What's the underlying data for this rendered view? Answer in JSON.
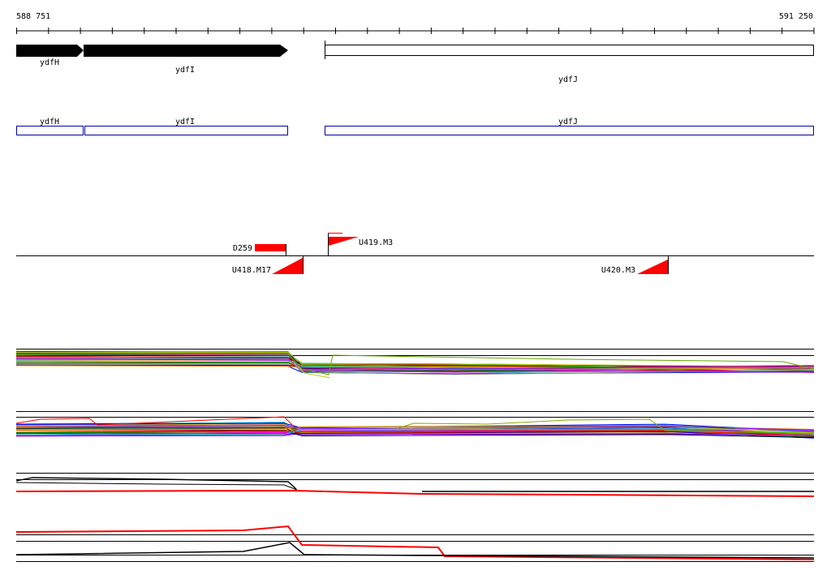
{
  "ruler": {
    "start_label": "588 751",
    "end_label": "591 250"
  },
  "genes": [
    {
      "id": "ydfH",
      "label": "ydfH",
      "strand": "+",
      "style": "filled"
    },
    {
      "id": "ydfI",
      "label": "ydfI",
      "strand": "+",
      "style": "filled"
    },
    {
      "id": "ydfJ",
      "label": "ydfJ",
      "strand": "+",
      "style": "open"
    }
  ],
  "annotations": [
    {
      "id": "ydfH",
      "label": "ydfH"
    },
    {
      "id": "ydfI",
      "label": "ydfI"
    },
    {
      "id": "ydfJ",
      "label": "ydfJ"
    }
  ],
  "features": [
    {
      "id": "D259",
      "label": "D259",
      "kind": "block"
    },
    {
      "id": "U419M3",
      "label": "U419.M3",
      "kind": "wedge-up"
    },
    {
      "id": "U418M17",
      "label": "U418.M17",
      "kind": "wedge-down"
    },
    {
      "id": "U420M3",
      "label": "U420.M3",
      "kind": "wedge-down"
    }
  ],
  "colors": {
    "gene_fill": "#000000",
    "annotation_stroke": "#0000aa",
    "feature_red": "#ff0000",
    "profile_palette": [
      "#000000",
      "#ff0000",
      "#00aa00",
      "#0000ff",
      "#ff00ff",
      "#00cccc",
      "#cccc00",
      "#ff8800",
      "#8800ff",
      "#888888",
      "#006600",
      "#990000"
    ]
  }
}
